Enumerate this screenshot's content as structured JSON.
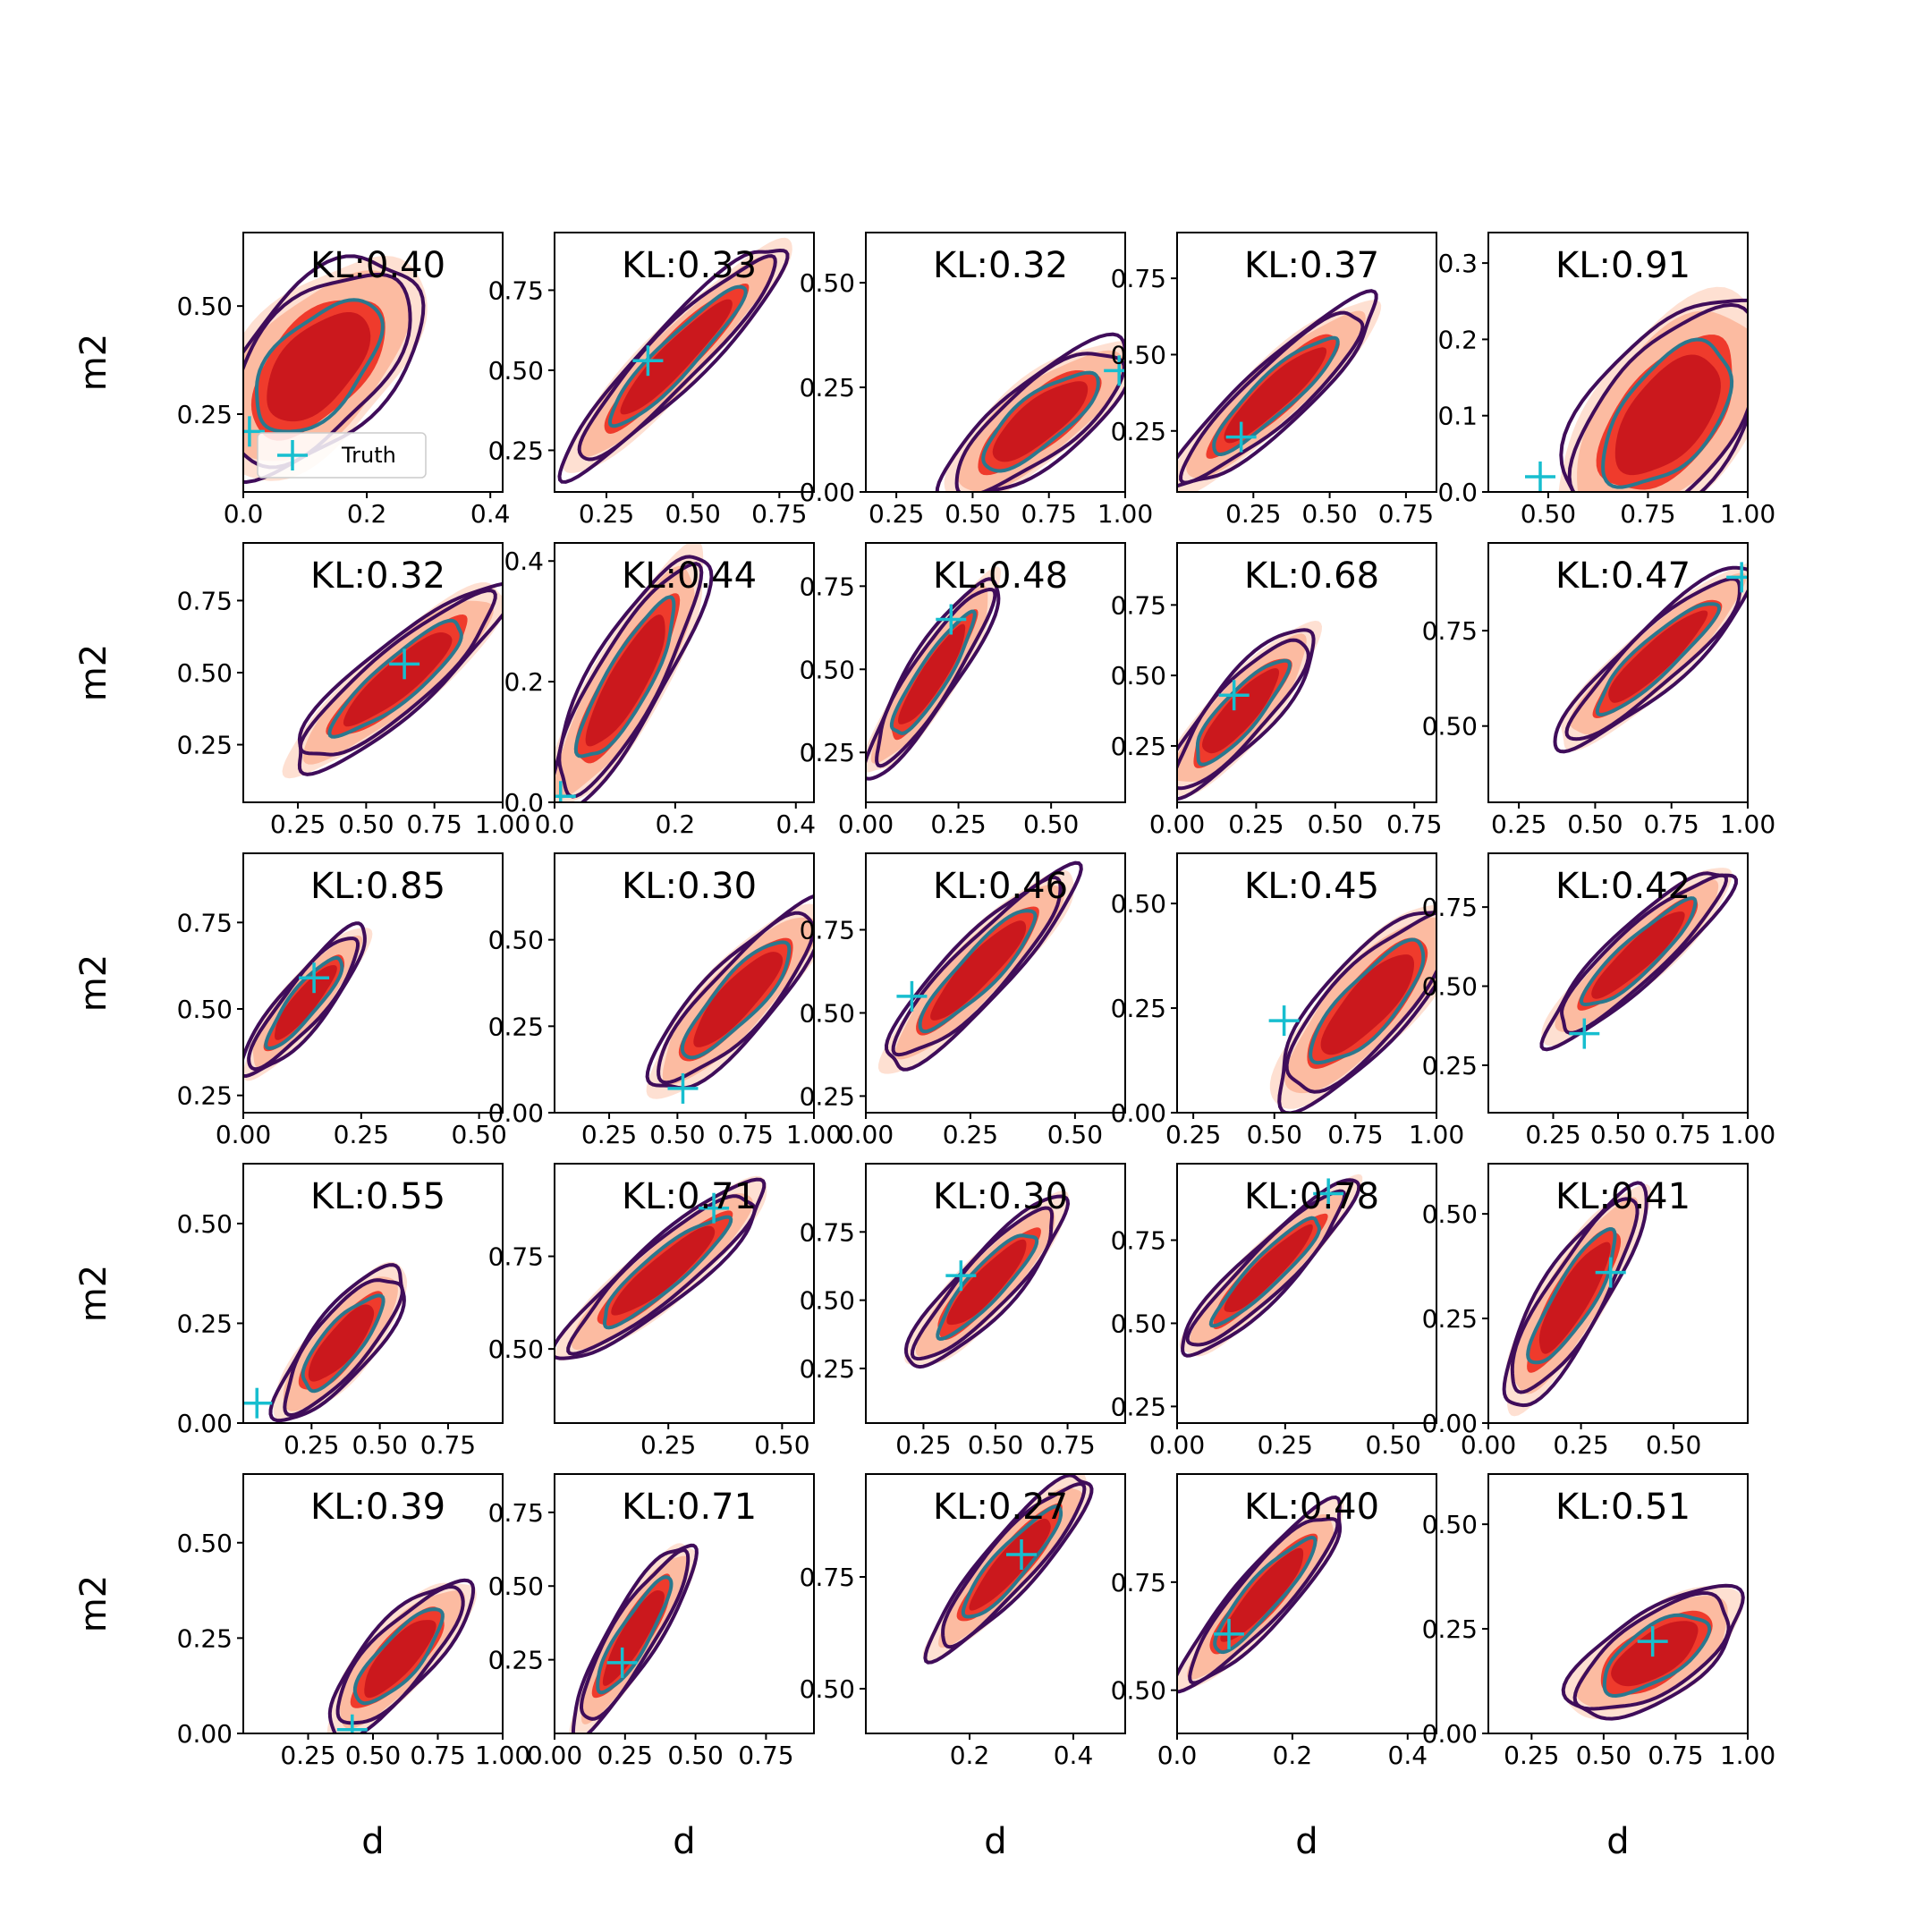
{
  "figure": {
    "x_label": "d",
    "y_label": "m2",
    "legend_label": "Truth",
    "colors": {
      "fill_inner": "#cb181d",
      "fill_mid": "#ef3b2c",
      "fill_light": "#fcbba1",
      "fill_faint": "#fee0d2",
      "contour_outer": "#3f0d5a",
      "contour_inner": "#2a788e",
      "truth_marker": "#17becf",
      "axes": "#000000"
    }
  },
  "chart_data": [
    {
      "type": "contour",
      "title": "KL:0.40",
      "xlim": [
        0,
        0.42
      ],
      "ylim": [
        0.07,
        0.67
      ],
      "xticks": [
        "0.0",
        "0.2",
        "0.4"
      ],
      "yticks": [
        "0.25",
        "0.50"
      ],
      "truth": {
        "x": 0.01,
        "y": 0.21
      },
      "center": [
        0.12,
        0.36
      ],
      "spread": [
        0.14,
        0.21
      ],
      "corr": 0.55,
      "legend": true
    },
    {
      "type": "contour",
      "title": "KL:0.33",
      "xlim": [
        0.1,
        0.85
      ],
      "ylim": [
        0.12,
        0.93
      ],
      "xticks": [
        "0.25",
        "0.50",
        "0.75"
      ],
      "yticks": [
        "0.25",
        "0.50",
        "0.75"
      ],
      "truth": {
        "x": 0.37,
        "y": 0.53
      },
      "center": [
        0.45,
        0.54
      ],
      "spread": [
        0.27,
        0.3
      ],
      "corr": 0.93,
      "legend": false
    },
    {
      "type": "contour",
      "title": "KL:0.32",
      "xlim": [
        0.15,
        1.0
      ],
      "ylim": [
        0,
        0.62
      ],
      "xticks": [
        "0.25",
        "0.50",
        "0.75",
        "1.00"
      ],
      "yticks": [
        "0.00",
        "0.25",
        "0.50"
      ],
      "truth": {
        "x": 0.98,
        "y": 0.29
      },
      "center": [
        0.72,
        0.17
      ],
      "spread": [
        0.26,
        0.16
      ],
      "corr": 0.78,
      "legend": false
    },
    {
      "type": "contour",
      "title": "KL:0.37",
      "xlim": [
        0,
        0.85
      ],
      "ylim": [
        0.05,
        0.9
      ],
      "xticks": [
        "0.25",
        "0.50",
        "0.75"
      ],
      "yticks": [
        "0.25",
        "0.50",
        "0.75"
      ],
      "truth": {
        "x": 0.21,
        "y": 0.23
      },
      "center": [
        0.32,
        0.37
      ],
      "spread": [
        0.28,
        0.26
      ],
      "corr": 0.9,
      "legend": false
    },
    {
      "type": "contour",
      "title": "KL:0.91",
      "xlim": [
        0.35,
        1.0
      ],
      "ylim": [
        0,
        0.34
      ],
      "xticks": [
        "0.50",
        "0.75",
        "1.00"
      ],
      "yticks": [
        "0.0",
        "0.1",
        "0.2",
        "0.3"
      ],
      "truth": {
        "x": 0.48,
        "y": 0.02
      },
      "center": [
        0.8,
        0.1
      ],
      "spread": [
        0.22,
        0.13
      ],
      "corr": 0.55,
      "legend": false
    },
    {
      "type": "contour",
      "title": "KL:0.32",
      "xlim": [
        0.05,
        1.0
      ],
      "ylim": [
        0.05,
        0.95
      ],
      "xticks": [
        "0.25",
        "0.50",
        "0.75",
        "1.00"
      ],
      "yticks": [
        "0.25",
        "0.50",
        "0.75"
      ],
      "truth": {
        "x": 0.64,
        "y": 0.53
      },
      "center": [
        0.62,
        0.48
      ],
      "spread": [
        0.33,
        0.27
      ],
      "corr": 0.88,
      "legend": false
    },
    {
      "type": "contour",
      "title": "KL:0.44",
      "xlim": [
        0,
        0.43
      ],
      "ylim": [
        0,
        0.43
      ],
      "xticks": [
        "0.0",
        "0.2",
        "0.4"
      ],
      "yticks": [
        "0.0",
        "0.2",
        "0.4"
      ],
      "truth": {
        "x": 0.01,
        "y": 0.01
      },
      "center": [
        0.12,
        0.2
      ],
      "spread": [
        0.11,
        0.18
      ],
      "corr": 0.85,
      "legend": false
    },
    {
      "type": "contour",
      "title": "KL:0.48",
      "xlim": [
        0,
        0.7
      ],
      "ylim": [
        0.1,
        0.88
      ],
      "xticks": [
        "0.00",
        "0.25",
        "0.50"
      ],
      "yticks": [
        "0.25",
        "0.50",
        "0.75"
      ],
      "truth": {
        "x": 0.23,
        "y": 0.65
      },
      "center": [
        0.18,
        0.48
      ],
      "spread": [
        0.15,
        0.25
      ],
      "corr": 0.9,
      "legend": false
    },
    {
      "type": "contour",
      "title": "KL:0.68",
      "xlim": [
        0,
        0.82
      ],
      "ylim": [
        0.05,
        0.97
      ],
      "xticks": [
        "0.00",
        "0.25",
        "0.50",
        "0.75"
      ],
      "yticks": [
        "0.25",
        "0.50",
        "0.75"
      ],
      "truth": {
        "x": 0.18,
        "y": 0.43
      },
      "center": [
        0.2,
        0.37
      ],
      "spread": [
        0.2,
        0.25
      ],
      "corr": 0.85,
      "legend": false
    },
    {
      "type": "contour",
      "title": "KL:0.47",
      "xlim": [
        0.15,
        1.0
      ],
      "ylim": [
        0.3,
        0.98
      ],
      "xticks": [
        "0.25",
        "0.50",
        "0.75",
        "1.00"
      ],
      "yticks": [
        "0.50",
        "0.75"
      ],
      "truth": {
        "x": 0.98,
        "y": 0.89
      },
      "center": [
        0.7,
        0.68
      ],
      "spread": [
        0.27,
        0.2
      ],
      "corr": 0.9,
      "legend": false
    },
    {
      "type": "contour",
      "title": "KL:0.85",
      "xlim": [
        0,
        0.55
      ],
      "ylim": [
        0.2,
        0.95
      ],
      "xticks": [
        "0.00",
        "0.25",
        "0.50"
      ],
      "yticks": [
        "0.25",
        "0.50",
        "0.75"
      ],
      "truth": {
        "x": 0.15,
        "y": 0.59
      },
      "center": [
        0.13,
        0.52
      ],
      "spread": [
        0.11,
        0.18
      ],
      "corr": 0.88,
      "legend": false
    },
    {
      "type": "contour",
      "title": "KL:0.30",
      "xlim": [
        0.05,
        1.0
      ],
      "ylim": [
        0,
        0.75
      ],
      "xticks": [
        "0.25",
        "0.50",
        "0.75",
        "1.00"
      ],
      "yticks": [
        "0.00",
        "0.25",
        "0.50"
      ],
      "truth": {
        "x": 0.52,
        "y": 0.07
      },
      "center": [
        0.72,
        0.33
      ],
      "spread": [
        0.27,
        0.23
      ],
      "corr": 0.85,
      "legend": false
    },
    {
      "type": "contour",
      "title": "KL:0.46",
      "xlim": [
        0,
        0.62
      ],
      "ylim": [
        0.2,
        0.98
      ],
      "xticks": [
        "0.00",
        "0.25",
        "0.50"
      ],
      "yticks": [
        "0.25",
        "0.50",
        "0.75"
      ],
      "truth": {
        "x": 0.11,
        "y": 0.55
      },
      "center": [
        0.27,
        0.63
      ],
      "spread": [
        0.19,
        0.25
      ],
      "corr": 0.9,
      "legend": false
    },
    {
      "type": "contour",
      "title": "KL:0.45",
      "xlim": [
        0.2,
        1.0
      ],
      "ylim": [
        0,
        0.62
      ],
      "xticks": [
        "0.25",
        "0.50",
        "0.75",
        "1.00"
      ],
      "yticks": [
        "0.00",
        "0.25",
        "0.50"
      ],
      "truth": {
        "x": 0.53,
        "y": 0.22
      },
      "center": [
        0.79,
        0.26
      ],
      "spread": [
        0.24,
        0.2
      ],
      "corr": 0.8,
      "legend": false
    },
    {
      "type": "contour",
      "title": "KL:0.42",
      "xlim": [
        0,
        1.0
      ],
      "ylim": [
        0.1,
        0.92
      ],
      "xticks": [
        "0.25",
        "0.50",
        "0.75",
        "1.00"
      ],
      "yticks": [
        "0.25",
        "0.50",
        "0.75"
      ],
      "truth": {
        "x": 0.37,
        "y": 0.35
      },
      "center": [
        0.58,
        0.6
      ],
      "spread": [
        0.3,
        0.23
      ],
      "corr": 0.9,
      "legend": false
    },
    {
      "type": "contour",
      "title": "KL:0.55",
      "xlim": [
        0,
        0.95
      ],
      "ylim": [
        0,
        0.65
      ],
      "xticks": [
        "0.25",
        "0.50",
        "0.75"
      ],
      "yticks": [
        "0.00",
        "0.25",
        "0.50"
      ],
      "truth": {
        "x": 0.05,
        "y": 0.05
      },
      "center": [
        0.36,
        0.2
      ],
      "spread": [
        0.2,
        0.16
      ],
      "corr": 0.8,
      "legend": false
    },
    {
      "type": "contour",
      "title": "KL:0.71",
      "xlim": [
        0,
        0.57
      ],
      "ylim": [
        0.3,
        1.0
      ],
      "xticks": [
        "0.25",
        "0.50"
      ],
      "yticks": [
        "0.50",
        "0.75"
      ],
      "truth": {
        "x": 0.35,
        "y": 0.88
      },
      "center": [
        0.24,
        0.71
      ],
      "spread": [
        0.19,
        0.2
      ],
      "corr": 0.9,
      "legend": false
    },
    {
      "type": "contour",
      "title": "KL:0.30",
      "xlim": [
        0.05,
        0.95
      ],
      "ylim": [
        0.05,
        1.0
      ],
      "xticks": [
        "0.25",
        "0.50",
        "0.75"
      ],
      "yticks": [
        "0.25",
        "0.50",
        "0.75"
      ],
      "truth": {
        "x": 0.38,
        "y": 0.59
      },
      "center": [
        0.47,
        0.56
      ],
      "spread": [
        0.23,
        0.26
      ],
      "corr": 0.88,
      "legend": false
    },
    {
      "type": "contour",
      "title": "KL:0.78",
      "xlim": [
        0,
        0.6
      ],
      "ylim": [
        0.2,
        0.98
      ],
      "xticks": [
        "0.00",
        "0.25",
        "0.50"
      ],
      "yticks": [
        "0.25",
        "0.50",
        "0.75"
      ],
      "truth": {
        "x": 0.35,
        "y": 0.89
      },
      "center": [
        0.21,
        0.66
      ],
      "spread": [
        0.17,
        0.22
      ],
      "corr": 0.92,
      "legend": false
    },
    {
      "type": "contour",
      "title": "KL:0.41",
      "xlim": [
        0,
        0.7
      ],
      "ylim": [
        0,
        0.62
      ],
      "xticks": [
        "0.00",
        "0.25",
        "0.50"
      ],
      "yticks": [
        "0.00",
        "0.25",
        "0.50"
      ],
      "truth": {
        "x": 0.33,
        "y": 0.36
      },
      "center": [
        0.23,
        0.3
      ],
      "spread": [
        0.16,
        0.22
      ],
      "corr": 0.85,
      "legend": false
    },
    {
      "type": "contour",
      "title": "KL:0.39",
      "xlim": [
        0,
        1.0
      ],
      "ylim": [
        0,
        0.68
      ],
      "xticks": [
        "0.25",
        "0.50",
        "0.75",
        "1.00"
      ],
      "yticks": [
        "0.00",
        "0.25",
        "0.50"
      ],
      "truth": {
        "x": 0.42,
        "y": 0.01
      },
      "center": [
        0.6,
        0.2
      ],
      "spread": [
        0.23,
        0.17
      ],
      "corr": 0.8,
      "legend": false
    },
    {
      "type": "contour",
      "title": "KL:0.71",
      "xlim": [
        0,
        0.92
      ],
      "ylim": [
        0,
        0.88
      ],
      "xticks": [
        "0.00",
        "0.25",
        "0.50",
        "0.75"
      ],
      "yticks": [
        "0.25",
        "0.50",
        "0.75"
      ],
      "truth": {
        "x": 0.24,
        "y": 0.24
      },
      "center": [
        0.28,
        0.33
      ],
      "spread": [
        0.18,
        0.27
      ],
      "corr": 0.88,
      "legend": false
    },
    {
      "type": "contour",
      "title": "KL:0.27",
      "xlim": [
        0,
        0.5
      ],
      "ylim": [
        0.4,
        0.98
      ],
      "xticks": [
        "0.2",
        "0.4"
      ],
      "yticks": [
        "0.50",
        "0.75"
      ],
      "truth": {
        "x": 0.3,
        "y": 0.8
      },
      "center": [
        0.28,
        0.78
      ],
      "spread": [
        0.13,
        0.17
      ],
      "corr": 0.9,
      "legend": false
    },
    {
      "type": "contour",
      "title": "KL:0.40",
      "xlim": [
        0,
        0.45
      ],
      "ylim": [
        0.4,
        1.0
      ],
      "xticks": [
        "0.0",
        "0.2",
        "0.4"
      ],
      "yticks": [
        "0.50",
        "0.75"
      ],
      "truth": {
        "x": 0.09,
        "y": 0.63
      },
      "center": [
        0.15,
        0.72
      ],
      "spread": [
        0.12,
        0.18
      ],
      "corr": 0.9,
      "legend": false
    },
    {
      "type": "contour",
      "title": "KL:0.51",
      "xlim": [
        0.1,
        1.0
      ],
      "ylim": [
        0,
        0.62
      ],
      "xticks": [
        "0.25",
        "0.50",
        "0.75",
        "1.00"
      ],
      "yticks": [
        "0.00",
        "0.25",
        "0.50"
      ],
      "truth": {
        "x": 0.67,
        "y": 0.22
      },
      "center": [
        0.68,
        0.19
      ],
      "spread": [
        0.25,
        0.13
      ],
      "corr": 0.65,
      "legend": false
    }
  ]
}
